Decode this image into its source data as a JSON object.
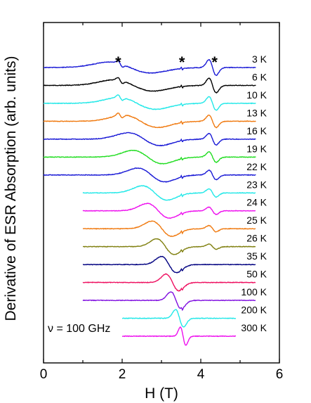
{
  "chart_data": {
    "type": "line",
    "title": "",
    "xlabel": "H (T)",
    "ylabel": "Derivative of ESR Absorption (arb. units)",
    "xlim": [
      0,
      6
    ],
    "xticks": [
      "0",
      "2",
      "4",
      "6"
    ],
    "y_ticks_labeled": false,
    "grid": false,
    "annotation": "ν = 100 GHz",
    "markers": [
      {
        "label": "*",
        "x": 1.9
      },
      {
        "label": "*",
        "x": 3.52
      },
      {
        "label": "*",
        "x": 4.35
      }
    ],
    "series": [
      {
        "name": "3 K",
        "color": "#1a1ad6",
        "x_range": [
          0,
          5.4
        ]
      },
      {
        "name": "6 K",
        "color": "#000000",
        "x_range": [
          0,
          5.4
        ]
      },
      {
        "name": "10 K",
        "color": "#22e8e8",
        "x_range": [
          0,
          5.4
        ]
      },
      {
        "name": "13 K",
        "color": "#f07a10",
        "x_range": [
          0,
          5.4
        ]
      },
      {
        "name": "16 K",
        "color": "#1a1ad6",
        "x_range": [
          0,
          5.4
        ]
      },
      {
        "name": "19 K",
        "color": "#22dd22",
        "x_range": [
          0,
          5.4
        ]
      },
      {
        "name": "22 K",
        "color": "#1a1ad6",
        "x_range": [
          0,
          5.4
        ]
      },
      {
        "name": "23 K",
        "color": "#22e8e8",
        "x_range": [
          1.0,
          5.4
        ]
      },
      {
        "name": "24 K",
        "color": "#ee10ee",
        "x_range": [
          1.0,
          5.4
        ]
      },
      {
        "name": "25 K",
        "color": "#f07a10",
        "x_range": [
          1.0,
          5.4
        ]
      },
      {
        "name": "26 K",
        "color": "#808010",
        "x_range": [
          1.0,
          5.4
        ]
      },
      {
        "name": "35 K",
        "color": "#000080",
        "x_range": [
          1.0,
          5.4
        ]
      },
      {
        "name": "50 K",
        "color": "#ee1060",
        "x_range": [
          1.0,
          5.4
        ]
      },
      {
        "name": "100 K",
        "color": "#8010e0",
        "x_range": [
          1.0,
          5.4
        ]
      },
      {
        "name": "200 K",
        "color": "#22e8e8",
        "x_range": [
          2.0,
          4.9
        ]
      },
      {
        "name": "300 K",
        "color": "#ee10ee",
        "x_range": [
          2.0,
          4.9
        ]
      }
    ]
  }
}
